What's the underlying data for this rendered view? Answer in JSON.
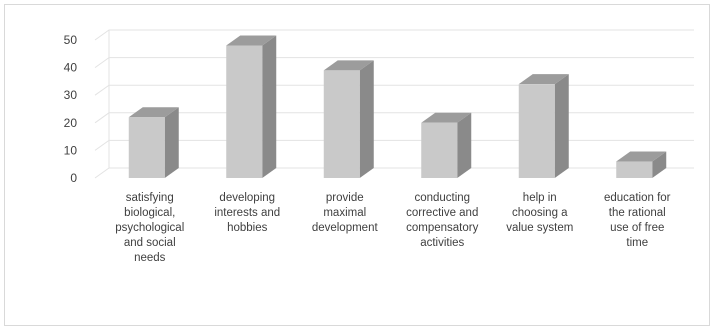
{
  "chart_data": {
    "type": "bar",
    "style": "3d-column",
    "categories": [
      "satisfying biological, psychological and social needs",
      "developing interests and hobbies",
      "provide maximal development",
      "conducting corrective and compensatory activities",
      "help in choosing a value system",
      "education for the rational use of free time"
    ],
    "category_lines": [
      [
        "satisfying",
        "biological,",
        "psychological",
        "and social",
        "needs"
      ],
      [
        "developing",
        "interests and",
        "hobbies"
      ],
      [
        "provide",
        "maximal",
        "development"
      ],
      [
        "conducting",
        "corrective and",
        "compensatory",
        "activities"
      ],
      [
        "help in",
        "choosing a",
        "value system"
      ],
      [
        "education for",
        "the rational",
        "use of free",
        "time"
      ]
    ],
    "values": [
      22,
      48,
      39,
      20,
      34,
      6
    ],
    "yticks": [
      0,
      10,
      20,
      30,
      40,
      50
    ],
    "ylim": [
      0,
      50
    ],
    "title": "",
    "xlabel": "",
    "ylabel": "",
    "grid": true,
    "legend": "none",
    "colors": {
      "front": "#c9c9c9",
      "side": "#8a8a8a",
      "top": "#9c9c9c",
      "grid": "#e3e3e3",
      "text": "#404040"
    }
  }
}
